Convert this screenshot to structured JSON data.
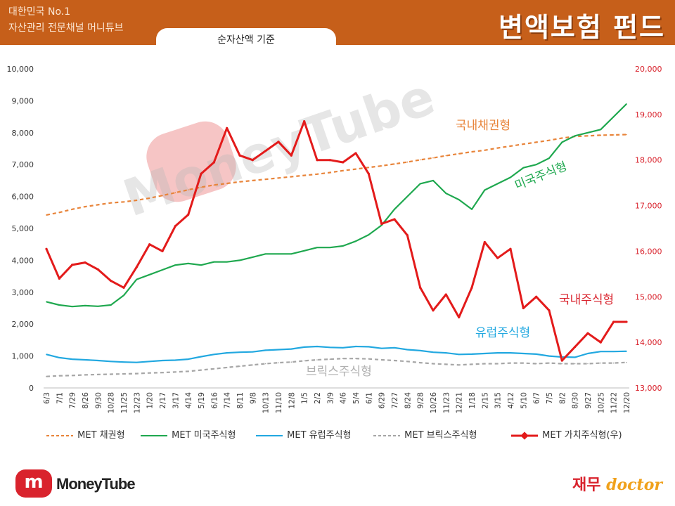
{
  "header": {
    "brand_line1": "대한민국 No.1",
    "brand_line2": "자산관리 전문채널 머니튜브",
    "title": "변액보험 펀드",
    "tab_label": "순자산액 기준"
  },
  "watermark": "MoneyTube",
  "footer": {
    "logo_mark": "m",
    "logo_text": "MoneyTube",
    "partner_kr": "재무",
    "partner_en": "doctor"
  },
  "colors": {
    "header": "#c65f1a",
    "bond": "#e8843a",
    "us": "#1fa84f",
    "eu": "#22a8e0",
    "brics": "#a6a6a6",
    "value": "#e31b1b"
  },
  "chart_data": {
    "type": "line",
    "x": [
      "6/3",
      "7/1",
      "7/29",
      "8/26",
      "9/30",
      "10/28",
      "11/25",
      "12/23",
      "1/20",
      "2/17",
      "3/17",
      "4/14",
      "5/19",
      "6/16",
      "7/14",
      "8/11",
      "9/8",
      "10/13",
      "11/10",
      "12/8",
      "1/5",
      "2/2",
      "3/9",
      "4/6",
      "5/4",
      "6/1",
      "6/29",
      "7/27",
      "8/24",
      "9/28",
      "10/26",
      "11/23",
      "12/21",
      "1/18",
      "2/15",
      "3/15",
      "4/12",
      "5/10",
      "6/7",
      "7/5",
      "8/2",
      "8/30",
      "9/27",
      "10/25",
      "11/22",
      "12/20"
    ],
    "y_left": {
      "min": 0,
      "max": 10000,
      "ticks": [
        "0",
        "1,000",
        "2,000",
        "3,000",
        "4,000",
        "5,000",
        "6,000",
        "7,000",
        "8,000",
        "9,000",
        "10,000"
      ]
    },
    "y_right": {
      "min": 13000,
      "max": 20000,
      "ticks": [
        "13,000",
        "14,000",
        "15,000",
        "16,000",
        "17,000",
        "18,000",
        "19,000",
        "20,000"
      ]
    },
    "series": [
      {
        "name": "MET 채권형",
        "axis": "left",
        "style": "dashed",
        "label": "국내채권형",
        "values": [
          5420,
          5500,
          5600,
          5680,
          5740,
          5800,
          5830,
          5880,
          5950,
          6030,
          6120,
          6210,
          6290,
          6360,
          6410,
          6460,
          6500,
          6540,
          6580,
          6620,
          6660,
          6700,
          6750,
          6810,
          6860,
          6910,
          6960,
          7020,
          7080,
          7150,
          7210,
          7280,
          7340,
          7400,
          7450,
          7520,
          7580,
          7640,
          7700,
          7760,
          7830,
          7880,
          7900,
          7920,
          7930,
          7940
        ]
      },
      {
        "name": "MET 미국주식형",
        "axis": "left",
        "style": "solid",
        "label": "미국주식형",
        "values": [
          2700,
          2600,
          2550,
          2580,
          2560,
          2600,
          2900,
          3400,
          3550,
          3700,
          3850,
          3900,
          3850,
          3950,
          3950,
          4000,
          4100,
          4200,
          4200,
          4200,
          4300,
          4400,
          4400,
          4450,
          4600,
          4800,
          5100,
          5600,
          6000,
          6400,
          6500,
          6100,
          5900,
          5600,
          6200,
          6400,
          6600,
          6900,
          7000,
          7200,
          7700,
          7900,
          8000,
          8100,
          8500,
          8900
        ]
      },
      {
        "name": "MET 유럽주식형",
        "axis": "left",
        "style": "solid",
        "label": "유럽주식형",
        "values": [
          1050,
          950,
          900,
          880,
          860,
          830,
          810,
          800,
          830,
          860,
          870,
          900,
          980,
          1050,
          1100,
          1120,
          1130,
          1180,
          1200,
          1220,
          1280,
          1300,
          1270,
          1260,
          1300,
          1290,
          1240,
          1260,
          1200,
          1170,
          1120,
          1100,
          1050,
          1060,
          1080,
          1100,
          1100,
          1080,
          1060,
          1000,
          970,
          960,
          1080,
          1140,
          1140,
          1150
        ]
      },
      {
        "name": "MET 브릭스주식형",
        "axis": "left",
        "style": "dashed",
        "label": "브릭스주식형",
        "values": [
          360,
          380,
          390,
          410,
          420,
          430,
          440,
          450,
          470,
          480,
          500,
          520,
          560,
          600,
          640,
          680,
          720,
          760,
          790,
          810,
          850,
          880,
          900,
          920,
          920,
          910,
          880,
          860,
          830,
          790,
          760,
          740,
          720,
          740,
          760,
          760,
          780,
          780,
          760,
          780,
          760,
          760,
          760,
          780,
          780,
          800
        ]
      },
      {
        "name": "MET 가치주식형(우)",
        "axis": "right",
        "style": "solid-marker",
        "label": "국내주식형",
        "values": [
          16050,
          15400,
          15700,
          15750,
          15600,
          15350,
          15200,
          15650,
          16150,
          16000,
          16550,
          16800,
          17700,
          17950,
          18700,
          18100,
          18000,
          18200,
          18400,
          18100,
          18850,
          18000,
          18000,
          17950,
          18150,
          17700,
          16600,
          16700,
          16350,
          15200,
          14700,
          15050,
          14550,
          15200,
          16200,
          15850,
          16050,
          14750,
          15000,
          14700,
          13600,
          13900,
          14200,
          14000,
          14450,
          14450
        ]
      }
    ]
  }
}
